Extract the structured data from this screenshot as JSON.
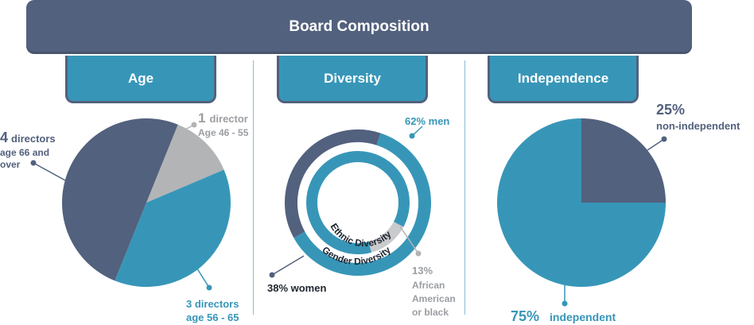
{
  "header": {
    "title": "Board Composition"
  },
  "sections": {
    "age": "Age",
    "diversity": "Diversity",
    "independence": "Independence"
  },
  "colors": {
    "navy": "#52617d",
    "teal": "#3796b8",
    "gray": "#b3b4b6",
    "text_gray": "#9b9ea2",
    "dark": "#1e2530"
  },
  "chart_data": [
    {
      "type": "pie",
      "title": "Age",
      "slices": [
        {
          "name": "Age 46 - 55",
          "value": 1,
          "color": "#b3b4b6"
        },
        {
          "name": "age 56 - 65",
          "value": 3,
          "color": "#3796b8"
        },
        {
          "name": "age 66 and over",
          "value": 4,
          "color": "#52617d"
        }
      ],
      "labels": {
        "age46_count": "1",
        "age46_word": "director",
        "age46_range": "Age 46 - 55",
        "age56_line1": "3 directors",
        "age56_line2": "age 56 - 65",
        "age66_count": "4",
        "age66_word": "directors",
        "age66_line2": "age 66 and",
        "age66_line3": "over"
      }
    },
    {
      "type": "pie",
      "title": "Diversity",
      "rings": [
        {
          "name": "Gender Diversity",
          "slices": [
            {
              "name": "men",
              "value": 62,
              "color": "#3796b8"
            },
            {
              "name": "women",
              "value": 38,
              "color": "#52617d"
            }
          ]
        },
        {
          "name": "Ethnic Diversity",
          "slices": [
            {
              "name": "African American or black",
              "value": 13,
              "color": "#c9cacc"
            },
            {
              "name": "other",
              "value": 87,
              "color": "#3796b8"
            }
          ]
        }
      ],
      "labels": {
        "men": "62% men",
        "women": "38% women",
        "ethnic_pct": "13%",
        "ethnic_l1": "African",
        "ethnic_l2": "American",
        "ethnic_l3": "or black",
        "gender_ring": "Gender Diversity",
        "ethnic_ring": "Ethnic Diversity"
      }
    },
    {
      "type": "pie",
      "title": "Independence",
      "slices": [
        {
          "name": "non-independent",
          "value": 25,
          "color": "#52617d"
        },
        {
          "name": "independent",
          "value": 75,
          "color": "#3796b8"
        }
      ],
      "labels": {
        "non_pct": "25%",
        "non_word": "non-independent",
        "ind_pct": "75%",
        "ind_word": "independent"
      }
    }
  ]
}
